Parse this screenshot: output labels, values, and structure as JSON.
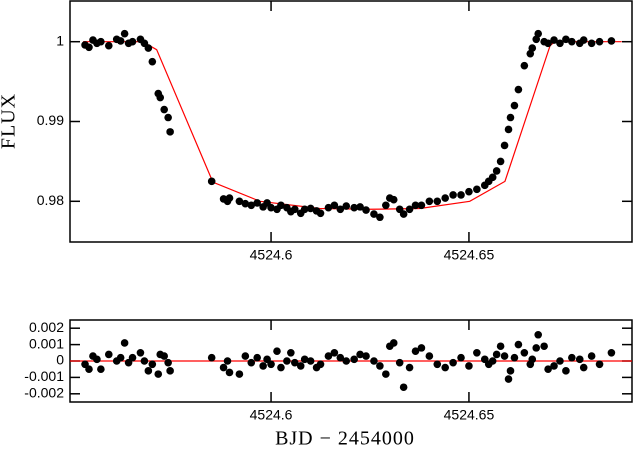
{
  "chart_data": [
    {
      "type": "scatter",
      "ylabel": "FLUX",
      "color": "#000000",
      "xlim": [
        4524.5492,
        4524.6912
      ],
      "ylim": [
        0.9749,
        1.0051
      ],
      "xticks": [
        4524.6,
        4524.65
      ],
      "yticks": [
        0.98,
        0.99,
        1
      ],
      "x": [
        4524.553,
        4524.554,
        4524.555,
        4524.556,
        4524.557,
        4524.559,
        4524.561,
        4524.562,
        4524.563,
        4524.564,
        4524.565,
        4524.567,
        4524.568,
        4524.569,
        4524.57,
        4524.5715,
        4524.572,
        4524.573,
        4524.574,
        4524.5745,
        4524.585,
        4524.588,
        4524.589,
        4524.5895,
        4524.592,
        4524.5935,
        4524.595,
        4524.5965,
        4524.598,
        4524.599,
        4524.6,
        4524.6015,
        4524.6025,
        4524.604,
        4524.605,
        4524.606,
        4524.6075,
        4524.6085,
        4524.61,
        4524.6115,
        4524.6125,
        4524.6145,
        4524.616,
        4524.6175,
        4524.619,
        4524.621,
        4524.6225,
        4524.624,
        4524.626,
        4524.6275,
        4524.629,
        4524.63,
        4524.631,
        4524.6325,
        4524.6335,
        4524.635,
        4524.6365,
        4524.638,
        4524.64,
        4524.642,
        4524.644,
        4524.646,
        4524.648,
        4524.65,
        4524.652,
        4524.654,
        4524.655,
        4524.656,
        4524.657,
        4524.658,
        4524.659,
        4524.66,
        4524.6605,
        4524.6615,
        4524.6625,
        4524.664,
        4524.6655,
        4524.666,
        4524.667,
        4524.6675,
        4524.669,
        4524.67,
        4524.6715,
        4524.673,
        4524.6745,
        4524.676,
        4524.678,
        4524.679,
        4524.681,
        4524.683,
        4524.686
      ],
      "values": [
        0.9996,
        0.9993,
        1.0002,
        0.9998,
        1.0,
        0.9995,
        1.0003,
        1.0001,
        1.001,
        0.9998,
        1.0,
        1.0003,
        0.9998,
        0.9992,
        0.9975,
        0.9935,
        0.993,
        0.9915,
        0.9905,
        0.9887,
        0.9825,
        0.9803,
        0.98,
        0.9804,
        0.98,
        0.9797,
        0.9795,
        0.9798,
        0.9793,
        0.9798,
        0.9792,
        0.979,
        0.9795,
        0.9792,
        0.9787,
        0.979,
        0.9785,
        0.979,
        0.9791,
        0.9788,
        0.9785,
        0.9792,
        0.9795,
        0.979,
        0.9794,
        0.9792,
        0.9793,
        0.9789,
        0.9784,
        0.978,
        0.9795,
        0.9804,
        0.9802,
        0.979,
        0.9784,
        0.979,
        0.9795,
        0.9795,
        0.98,
        0.98,
        0.9804,
        0.9808,
        0.9808,
        0.9812,
        0.9815,
        0.982,
        0.9825,
        0.983,
        0.9838,
        0.985,
        0.987,
        0.989,
        0.9905,
        0.992,
        0.994,
        0.997,
        0.9985,
        0.9992,
        1.0003,
        1.001,
        1.0,
        0.9998,
        1.0002,
        0.9998,
        1.0003,
        1.0,
        0.9998,
        1.0002,
        0.9998,
        1.0,
        1.0001
      ],
      "model": {
        "color": "#ff0000",
        "x": [
          4524.5525,
          4524.5676,
          4524.5711,
          4524.5853,
          4524.5972,
          4524.6123,
          4524.625,
          4524.6376,
          4524.6502,
          4524.6591,
          4524.6705,
          4524.6717,
          4524.6886
        ],
        "values": [
          1.0,
          1.0,
          0.999,
          0.9824,
          0.98,
          0.9791,
          0.979,
          0.9791,
          0.98,
          0.9825,
          0.9995,
          1.0,
          1.0
        ]
      }
    },
    {
      "type": "scatter",
      "xlabel": "BJD − 2454000",
      "color": "#000000",
      "xlim": [
        4524.5492,
        4524.6912
      ],
      "ylim": [
        -0.0025,
        0.0025
      ],
      "xticks": [
        4524.6,
        4524.65
      ],
      "yticks": [
        -0.002,
        -0.001,
        0,
        0.001,
        0.002
      ],
      "x": [
        4524.553,
        4524.554,
        4524.555,
        4524.556,
        4524.557,
        4524.559,
        4524.561,
        4524.562,
        4524.563,
        4524.564,
        4524.565,
        4524.567,
        4524.568,
        4524.569,
        4524.57,
        4524.5715,
        4524.572,
        4524.573,
        4524.574,
        4524.5745,
        4524.585,
        4524.588,
        4524.589,
        4524.5895,
        4524.592,
        4524.5935,
        4524.595,
        4524.5965,
        4524.598,
        4524.599,
        4524.6,
        4524.6015,
        4524.6025,
        4524.604,
        4524.605,
        4524.606,
        4524.6075,
        4524.6085,
        4524.61,
        4524.6115,
        4524.6125,
        4524.6145,
        4524.616,
        4524.6175,
        4524.619,
        4524.621,
        4524.6225,
        4524.624,
        4524.626,
        4524.6275,
        4524.629,
        4524.63,
        4524.631,
        4524.6325,
        4524.6335,
        4524.635,
        4524.6365,
        4524.638,
        4524.64,
        4524.642,
        4524.644,
        4524.646,
        4524.648,
        4524.65,
        4524.652,
        4524.654,
        4524.655,
        4524.656,
        4524.657,
        4524.658,
        4524.659,
        4524.66,
        4524.6605,
        4524.6615,
        4524.6625,
        4524.664,
        4524.6655,
        4524.666,
        4524.667,
        4524.6675,
        4524.669,
        4524.67,
        4524.6715,
        4524.673,
        4524.6745,
        4524.676,
        4524.678,
        4524.679,
        4524.681,
        4524.683,
        4524.686
      ],
      "values": [
        -0.0002,
        -0.0005,
        0.0003,
        0.0001,
        -0.0005,
        0.0004,
        0.0,
        0.0002,
        0.0011,
        -0.0001,
        0.0002,
        0.0005,
        0.0,
        -0.0006,
        -0.0002,
        -0.0008,
        0.0004,
        0.0003,
        -0.0001,
        -0.0006,
        0.0002,
        -0.0004,
        0.0,
        -0.0007,
        -0.0008,
        0.0003,
        -0.0001,
        0.0002,
        -0.0003,
        0.0001,
        -0.0002,
        0.0006,
        -0.0004,
        0.0,
        0.0005,
        -0.0001,
        -0.0003,
        0.0001,
        0.0,
        -0.0004,
        -0.0002,
        0.0003,
        0.0005,
        0.0002,
        0.0,
        0.0001,
        0.0004,
        0.0003,
        0.0,
        -0.0003,
        -0.0008,
        0.0009,
        0.0011,
        -0.0001,
        -0.0016,
        -0.0004,
        0.0006,
        0.0008,
        0.0003,
        -0.0002,
        -0.0004,
        -0.0001,
        0.0002,
        -0.0003,
        0.0005,
        0.0001,
        -0.0002,
        0.0,
        0.0004,
        0.0009,
        0.0003,
        -0.0011,
        -0.0006,
        0.0002,
        0.001,
        0.0005,
        -0.0002,
        0.0001,
        0.0008,
        0.0016,
        0.0009,
        -0.0005,
        -0.0003,
        0.0,
        -0.0006,
        0.0002,
        0.0001,
        -0.0004,
        0.0003,
        -0.0002,
        0.0005
      ],
      "model": {
        "color": "#ff0000",
        "x": [
          4524.5492,
          4524.6912
        ],
        "values": [
          0,
          0
        ]
      }
    }
  ]
}
